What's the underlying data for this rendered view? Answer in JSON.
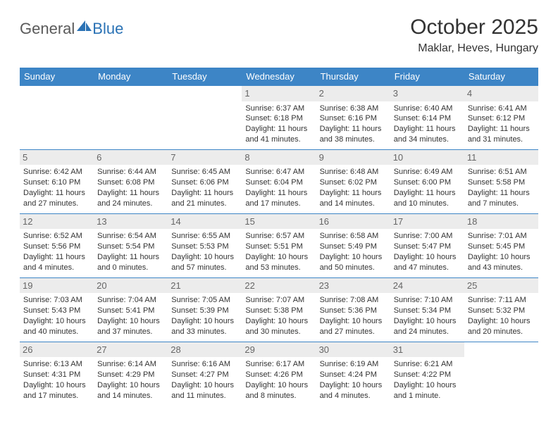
{
  "logo": {
    "general": "General",
    "blue": "Blue"
  },
  "title": "October 2025",
  "location": "Maklar, Heves, Hungary",
  "colors": {
    "header_bg": "#3d85c6",
    "header_text": "#ffffff",
    "border": "#3d85c6",
    "daynum_bg": "#ececec",
    "text": "#333333",
    "logo_gray": "#5a5a5a",
    "logo_blue": "#2a72b5",
    "background": "#ffffff"
  },
  "daysOfWeek": [
    "Sunday",
    "Monday",
    "Tuesday",
    "Wednesday",
    "Thursday",
    "Friday",
    "Saturday"
  ],
  "weeks": [
    [
      {
        "n": "",
        "lines": []
      },
      {
        "n": "",
        "lines": []
      },
      {
        "n": "",
        "lines": []
      },
      {
        "n": "1",
        "lines": [
          "Sunrise: 6:37 AM",
          "Sunset: 6:18 PM",
          "Daylight: 11 hours and 41 minutes."
        ]
      },
      {
        "n": "2",
        "lines": [
          "Sunrise: 6:38 AM",
          "Sunset: 6:16 PM",
          "Daylight: 11 hours and 38 minutes."
        ]
      },
      {
        "n": "3",
        "lines": [
          "Sunrise: 6:40 AM",
          "Sunset: 6:14 PM",
          "Daylight: 11 hours and 34 minutes."
        ]
      },
      {
        "n": "4",
        "lines": [
          "Sunrise: 6:41 AM",
          "Sunset: 6:12 PM",
          "Daylight: 11 hours and 31 minutes."
        ]
      }
    ],
    [
      {
        "n": "5",
        "lines": [
          "Sunrise: 6:42 AM",
          "Sunset: 6:10 PM",
          "Daylight: 11 hours and 27 minutes."
        ]
      },
      {
        "n": "6",
        "lines": [
          "Sunrise: 6:44 AM",
          "Sunset: 6:08 PM",
          "Daylight: 11 hours and 24 minutes."
        ]
      },
      {
        "n": "7",
        "lines": [
          "Sunrise: 6:45 AM",
          "Sunset: 6:06 PM",
          "Daylight: 11 hours and 21 minutes."
        ]
      },
      {
        "n": "8",
        "lines": [
          "Sunrise: 6:47 AM",
          "Sunset: 6:04 PM",
          "Daylight: 11 hours and 17 minutes."
        ]
      },
      {
        "n": "9",
        "lines": [
          "Sunrise: 6:48 AM",
          "Sunset: 6:02 PM",
          "Daylight: 11 hours and 14 minutes."
        ]
      },
      {
        "n": "10",
        "lines": [
          "Sunrise: 6:49 AM",
          "Sunset: 6:00 PM",
          "Daylight: 11 hours and 10 minutes."
        ]
      },
      {
        "n": "11",
        "lines": [
          "Sunrise: 6:51 AM",
          "Sunset: 5:58 PM",
          "Daylight: 11 hours and 7 minutes."
        ]
      }
    ],
    [
      {
        "n": "12",
        "lines": [
          "Sunrise: 6:52 AM",
          "Sunset: 5:56 PM",
          "Daylight: 11 hours and 4 minutes."
        ]
      },
      {
        "n": "13",
        "lines": [
          "Sunrise: 6:54 AM",
          "Sunset: 5:54 PM",
          "Daylight: 11 hours and 0 minutes."
        ]
      },
      {
        "n": "14",
        "lines": [
          "Sunrise: 6:55 AM",
          "Sunset: 5:53 PM",
          "Daylight: 10 hours and 57 minutes."
        ]
      },
      {
        "n": "15",
        "lines": [
          "Sunrise: 6:57 AM",
          "Sunset: 5:51 PM",
          "Daylight: 10 hours and 53 minutes."
        ]
      },
      {
        "n": "16",
        "lines": [
          "Sunrise: 6:58 AM",
          "Sunset: 5:49 PM",
          "Daylight: 10 hours and 50 minutes."
        ]
      },
      {
        "n": "17",
        "lines": [
          "Sunrise: 7:00 AM",
          "Sunset: 5:47 PM",
          "Daylight: 10 hours and 47 minutes."
        ]
      },
      {
        "n": "18",
        "lines": [
          "Sunrise: 7:01 AM",
          "Sunset: 5:45 PM",
          "Daylight: 10 hours and 43 minutes."
        ]
      }
    ],
    [
      {
        "n": "19",
        "lines": [
          "Sunrise: 7:03 AM",
          "Sunset: 5:43 PM",
          "Daylight: 10 hours and 40 minutes."
        ]
      },
      {
        "n": "20",
        "lines": [
          "Sunrise: 7:04 AM",
          "Sunset: 5:41 PM",
          "Daylight: 10 hours and 37 minutes."
        ]
      },
      {
        "n": "21",
        "lines": [
          "Sunrise: 7:05 AM",
          "Sunset: 5:39 PM",
          "Daylight: 10 hours and 33 minutes."
        ]
      },
      {
        "n": "22",
        "lines": [
          "Sunrise: 7:07 AM",
          "Sunset: 5:38 PM",
          "Daylight: 10 hours and 30 minutes."
        ]
      },
      {
        "n": "23",
        "lines": [
          "Sunrise: 7:08 AM",
          "Sunset: 5:36 PM",
          "Daylight: 10 hours and 27 minutes."
        ]
      },
      {
        "n": "24",
        "lines": [
          "Sunrise: 7:10 AM",
          "Sunset: 5:34 PM",
          "Daylight: 10 hours and 24 minutes."
        ]
      },
      {
        "n": "25",
        "lines": [
          "Sunrise: 7:11 AM",
          "Sunset: 5:32 PM",
          "Daylight: 10 hours and 20 minutes."
        ]
      }
    ],
    [
      {
        "n": "26",
        "lines": [
          "Sunrise: 6:13 AM",
          "Sunset: 4:31 PM",
          "Daylight: 10 hours and 17 minutes."
        ]
      },
      {
        "n": "27",
        "lines": [
          "Sunrise: 6:14 AM",
          "Sunset: 4:29 PM",
          "Daylight: 10 hours and 14 minutes."
        ]
      },
      {
        "n": "28",
        "lines": [
          "Sunrise: 6:16 AM",
          "Sunset: 4:27 PM",
          "Daylight: 10 hours and 11 minutes."
        ]
      },
      {
        "n": "29",
        "lines": [
          "Sunrise: 6:17 AM",
          "Sunset: 4:26 PM",
          "Daylight: 10 hours and 8 minutes."
        ]
      },
      {
        "n": "30",
        "lines": [
          "Sunrise: 6:19 AM",
          "Sunset: 4:24 PM",
          "Daylight: 10 hours and 4 minutes."
        ]
      },
      {
        "n": "31",
        "lines": [
          "Sunrise: 6:21 AM",
          "Sunset: 4:22 PM",
          "Daylight: 10 hours and 1 minute."
        ]
      },
      {
        "n": "",
        "lines": []
      }
    ]
  ]
}
